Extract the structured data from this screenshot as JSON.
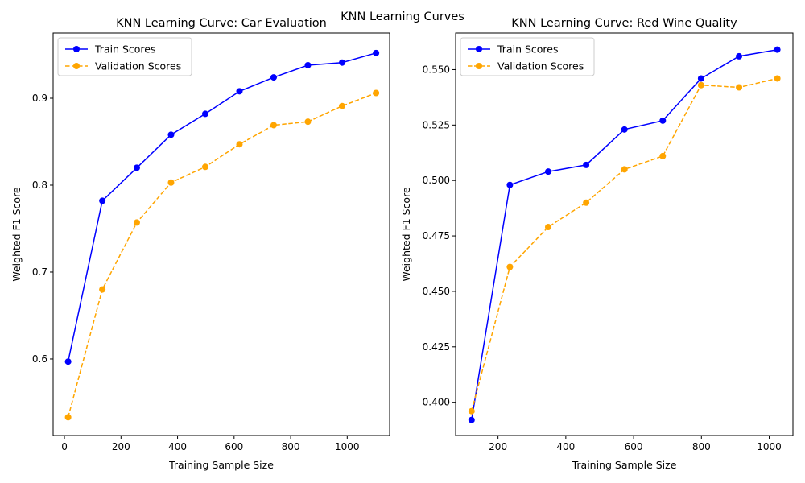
{
  "figure": {
    "title": "KNN Learning Curves"
  },
  "colors": {
    "train": "#0000ff",
    "validation": "#ffa500",
    "frame": "#000000"
  },
  "chart_data": [
    {
      "type": "line",
      "title": "KNN Learning Curve: Car Evaluation",
      "xlabel": "Training Sample Size",
      "ylabel": "Weighted F1 Score",
      "xlim": [
        -40,
        1150
      ],
      "ylim": [
        0.512,
        0.975
      ],
      "xticks": [
        0,
        200,
        400,
        600,
        800,
        1000
      ],
      "yticks": [
        0.6,
        0.7,
        0.8,
        0.9
      ],
      "ytick_decimals": 1,
      "legend": "top-left",
      "grid": false,
      "series": [
        {
          "name": "Train Scores",
          "style": "solid",
          "color": "#0000ff",
          "x": [
            13,
            134,
            256,
            377,
            498,
            619,
            740,
            861,
            982,
            1102
          ],
          "y": [
            0.597,
            0.782,
            0.82,
            0.858,
            0.882,
            0.908,
            0.924,
            0.938,
            0.941,
            0.952
          ]
        },
        {
          "name": "Validation Scores",
          "style": "dashed",
          "color": "#ffa500",
          "x": [
            13,
            134,
            256,
            377,
            498,
            619,
            740,
            861,
            982,
            1102
          ],
          "y": [
            0.533,
            0.68,
            0.757,
            0.803,
            0.821,
            0.847,
            0.869,
            0.873,
            0.891,
            0.906
          ]
        }
      ]
    },
    {
      "type": "line",
      "title": "KNN Learning Curve: Red Wine Quality",
      "xlabel": "Training Sample Size",
      "ylabel": "Weighted F1 Score",
      "xlim": [
        75,
        1070
      ],
      "ylim": [
        0.385,
        0.5665
      ],
      "xticks": [
        200,
        400,
        600,
        800,
        1000
      ],
      "yticks": [
        0.4,
        0.425,
        0.45,
        0.475,
        0.5,
        0.525,
        0.55
      ],
      "ytick_decimals": 3,
      "legend": "top-left",
      "grid": false,
      "series": [
        {
          "name": "Train Scores",
          "style": "solid",
          "color": "#0000ff",
          "x": [
            122,
            235,
            348,
            460,
            573,
            686,
            799,
            911,
            1024
          ],
          "y": [
            0.392,
            0.498,
            0.504,
            0.507,
            0.523,
            0.527,
            0.546,
            0.556,
            0.559
          ]
        },
        {
          "name": "Validation Scores",
          "style": "dashed",
          "color": "#ffa500",
          "x": [
            122,
            235,
            348,
            460,
            573,
            686,
            799,
            911,
            1024
          ],
          "y": [
            0.396,
            0.461,
            0.479,
            0.49,
            0.505,
            0.511,
            0.543,
            0.542,
            0.546
          ]
        }
      ]
    }
  ]
}
